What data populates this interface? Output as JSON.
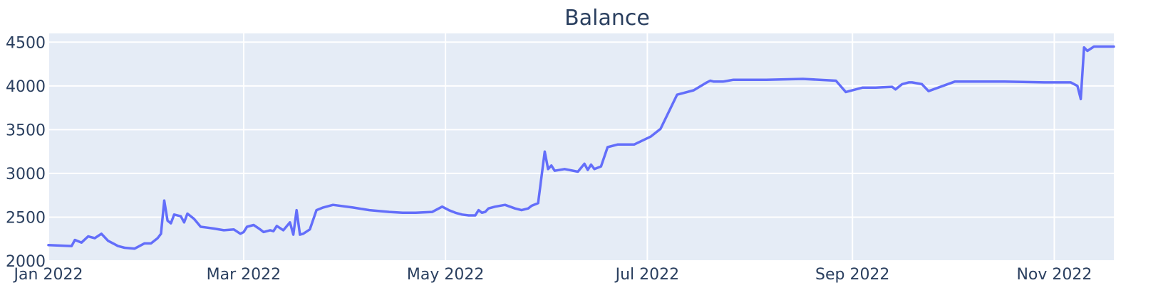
{
  "chart_data": {
    "type": "line",
    "title": "Balance",
    "xlabel": "",
    "ylabel": "",
    "x_tick_labels": [
      {
        "date": "2022-01-01",
        "label": "Jan 2022"
      },
      {
        "date": "2022-03-01",
        "label": "Mar 2022"
      },
      {
        "date": "2022-05-01",
        "label": "May 2022"
      },
      {
        "date": "2022-07-01",
        "label": "Jul 2022"
      },
      {
        "date": "2022-09-01",
        "label": "Sep 2022"
      },
      {
        "date": "2022-11-01",
        "label": "Nov 2022"
      }
    ],
    "y_tick_labels": [
      "2000",
      "2500",
      "3000",
      "3500",
      "4000",
      "4500"
    ],
    "y_ticks": [
      2000,
      2500,
      3000,
      3500,
      4000,
      4500
    ],
    "xlim": [
      "2022-01-01",
      "2022-11-19"
    ],
    "ylim": [
      2000,
      4600
    ],
    "grid": true,
    "colors": {
      "line": "#636efa",
      "plot_background": "#e5ecf6",
      "grid": "#ffffff",
      "text": "#2a3f5f"
    },
    "series": [
      {
        "x": [
          "2022-01-01",
          "2022-01-08",
          "2022-01-09",
          "2022-01-11",
          "2022-01-13",
          "2022-01-15",
          "2022-01-17",
          "2022-01-19",
          "2022-01-21",
          "2022-01-22",
          "2022-01-24",
          "2022-01-27",
          "2022-01-30",
          "2022-02-01",
          "2022-02-03",
          "2022-02-04",
          "2022-02-05",
          "2022-02-06",
          "2022-02-07",
          "2022-02-08",
          "2022-02-10",
          "2022-02-11",
          "2022-02-12",
          "2022-02-14",
          "2022-02-16",
          "2022-02-18",
          "2022-02-20",
          "2022-02-23",
          "2022-02-26",
          "2022-02-28",
          "2022-03-01",
          "2022-03-02",
          "2022-03-04",
          "2022-03-06",
          "2022-03-07",
          "2022-03-09",
          "2022-03-10",
          "2022-03-11",
          "2022-03-13",
          "2022-03-15",
          "2022-03-16",
          "2022-03-17",
          "2022-03-18",
          "2022-03-19",
          "2022-03-21",
          "2022-03-23",
          "2022-03-25",
          "2022-03-28",
          "2022-04-03",
          "2022-04-08",
          "2022-04-14",
          "2022-04-18",
          "2022-04-22",
          "2022-04-27",
          "2022-04-30",
          "2022-05-02",
          "2022-05-04",
          "2022-05-06",
          "2022-05-08",
          "2022-05-10",
          "2022-05-11",
          "2022-05-12",
          "2022-05-13",
          "2022-05-14",
          "2022-05-16",
          "2022-05-19",
          "2022-05-22",
          "2022-05-24",
          "2022-05-26",
          "2022-05-27",
          "2022-05-29",
          "2022-05-31",
          "2022-06-01",
          "2022-06-02",
          "2022-06-03",
          "2022-06-06",
          "2022-06-10",
          "2022-06-12",
          "2022-06-13",
          "2022-06-14",
          "2022-06-15",
          "2022-06-17",
          "2022-06-19",
          "2022-06-22",
          "2022-06-27",
          "2022-07-02",
          "2022-07-05",
          "2022-07-10",
          "2022-07-15",
          "2022-07-19",
          "2022-07-20",
          "2022-07-21",
          "2022-07-24",
          "2022-07-27",
          "2022-08-06",
          "2022-08-17",
          "2022-08-27",
          "2022-08-30",
          "2022-08-31",
          "2022-09-04",
          "2022-09-08",
          "2022-09-13",
          "2022-09-14",
          "2022-09-16",
          "2022-09-18",
          "2022-09-19",
          "2022-09-22",
          "2022-09-24",
          "2022-10-02",
          "2022-10-17",
          "2022-10-29",
          "2022-11-06",
          "2022-11-07",
          "2022-11-08",
          "2022-11-09",
          "2022-11-10",
          "2022-11-11",
          "2022-11-13",
          "2022-11-19"
        ],
        "y": [
          2180,
          2170,
          2240,
          2210,
          2280,
          2260,
          2310,
          2230,
          2190,
          2170,
          2150,
          2140,
          2200,
          2200,
          2260,
          2310,
          2690,
          2460,
          2430,
          2530,
          2510,
          2440,
          2540,
          2480,
          2390,
          2380,
          2370,
          2350,
          2360,
          2310,
          2330,
          2390,
          2410,
          2360,
          2330,
          2350,
          2340,
          2400,
          2350,
          2440,
          2300,
          2580,
          2300,
          2310,
          2360,
          2580,
          2610,
          2640,
          2610,
          2580,
          2560,
          2550,
          2550,
          2560,
          2620,
          2580,
          2550,
          2530,
          2520,
          2520,
          2580,
          2550,
          2560,
          2600,
          2620,
          2640,
          2600,
          2580,
          2600,
          2630,
          2660,
          3250,
          3050,
          3090,
          3030,
          3050,
          3020,
          3110,
          3040,
          3100,
          3050,
          3080,
          3300,
          3330,
          3330,
          3420,
          3510,
          3900,
          3950,
          4040,
          4060,
          4050,
          4050,
          4070,
          4070,
          4080,
          4060,
          3930,
          3940,
          3980,
          3980,
          3990,
          3960,
          4020,
          4040,
          4040,
          4020,
          3940,
          4050,
          4050,
          4040,
          4040,
          4020,
          4000,
          3850,
          4440,
          4400,
          4450,
          4450
        ],
        "x_dates_note": "",
        "name": ""
      }
    ]
  }
}
